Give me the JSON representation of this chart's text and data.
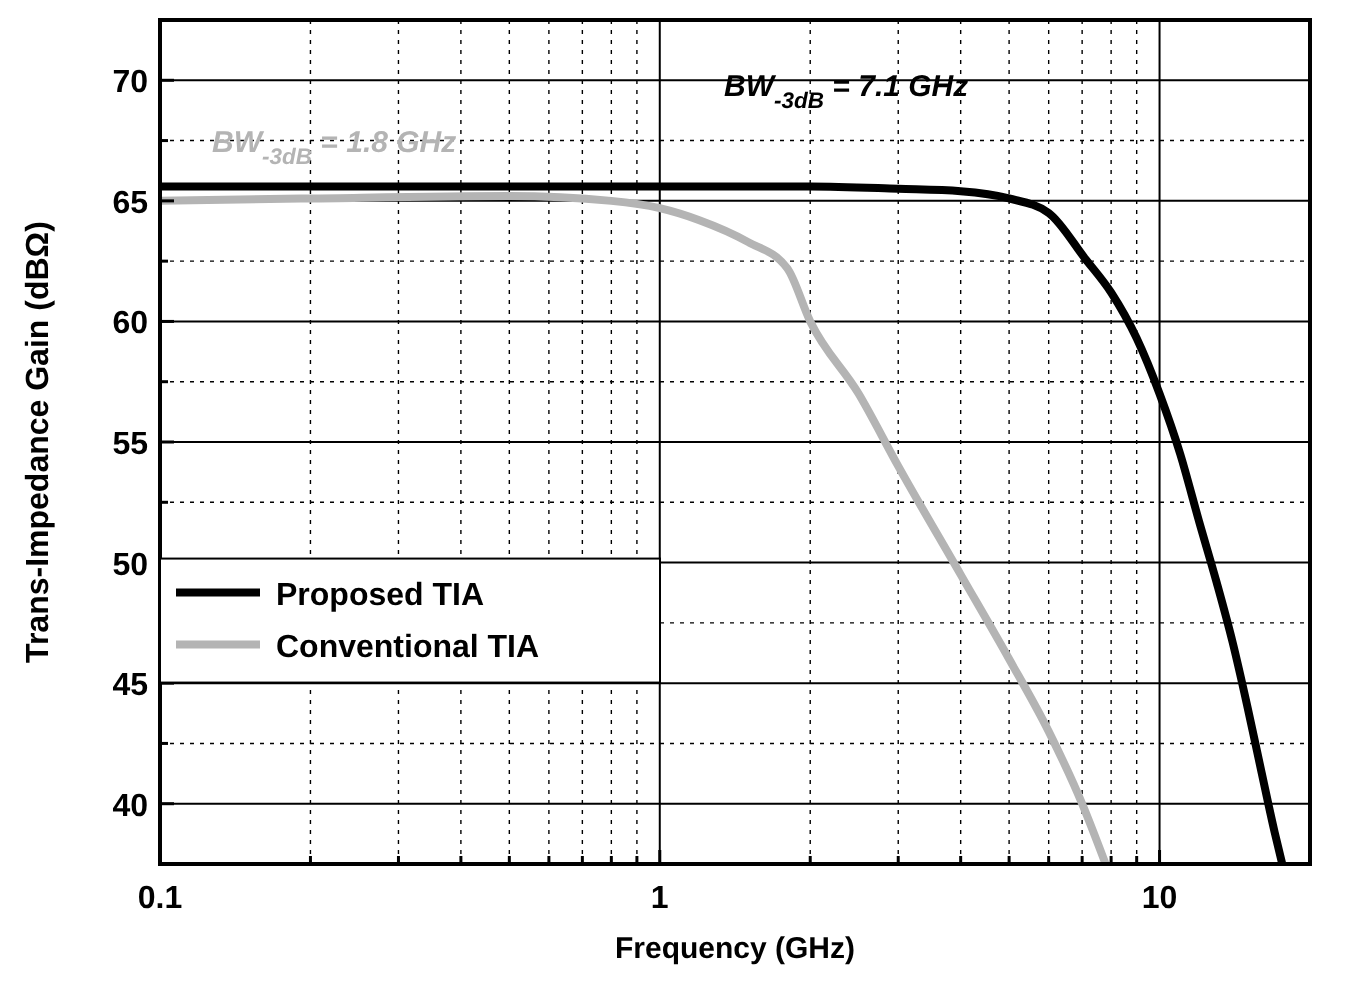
{
  "chart_data": {
    "type": "line",
    "xlabel": "Frequency (GHz)",
    "ylabel": "Trans-Impedance Gain (dBΩ)",
    "log": "x",
    "grid": true,
    "legend": "bottom left",
    "line_style": "solid",
    "xlim": [
      0.1,
      20
    ],
    "ylim": [
      37.5,
      72.5
    ],
    "xticks": [
      0.1,
      {
        "value": 0.2,
        "label": null
      },
      {
        "value": 0.3,
        "label": null
      },
      {
        "value": 0.4,
        "label": null
      },
      {
        "value": 0.5,
        "label": null
      },
      {
        "value": 0.6,
        "label": null
      },
      {
        "value": 0.7,
        "label": null
      },
      {
        "value": 0.8,
        "label": null
      },
      {
        "value": 0.9,
        "label": null
      },
      1,
      {
        "value": 2,
        "label": null
      },
      {
        "value": 3,
        "label": null
      },
      {
        "value": 4,
        "label": null
      },
      {
        "value": 5,
        "label": null
      },
      {
        "value": 6,
        "label": null
      },
      {
        "value": 7,
        "label": null
      },
      {
        "value": 8,
        "label": null
      },
      {
        "value": 9,
        "label": null
      },
      10,
      {
        "value": 20,
        "label": null
      }
    ],
    "yticks": [
      40,
      {
        "value": 42.5,
        "label": null
      },
      45,
      {
        "value": 47.5,
        "label": null
      },
      50,
      {
        "value": 52.5,
        "label": null
      },
      55,
      {
        "value": 57.5,
        "label": null
      },
      60,
      {
        "value": 62.5,
        "label": null
      },
      65,
      {
        "value": 67.5,
        "label": null
      },
      70
    ],
    "series": [
      {
        "name": "Proposed TIA",
        "color": "#000000",
        "x": [
          0.1,
          0.5,
          1,
          2,
          3,
          4,
          5,
          6,
          7.1,
          8,
          9,
          10,
          11,
          12,
          13,
          14,
          15,
          16,
          17,
          17.6
        ],
        "values": [
          65.6,
          65.6,
          65.6,
          65.6,
          65.5,
          65.4,
          65.1,
          64.5,
          62.6,
          61.2,
          59.3,
          57.0,
          54.5,
          51.7,
          49.2,
          46.7,
          44.0,
          41.3,
          38.8,
          37.5
        ]
      },
      {
        "name": "Conventional TIA",
        "color": "#b4b4b4",
        "x": [
          0.1,
          0.2,
          0.5,
          0.8,
          1,
          1.2,
          1.5,
          1.8,
          2,
          2.5,
          3,
          4,
          5,
          6,
          7,
          7.8
        ],
        "values": [
          65.0,
          65.1,
          65.2,
          65.0,
          64.7,
          64.2,
          63.3,
          62.2,
          60.0,
          57.0,
          54.0,
          49.5,
          46.0,
          43.0,
          40.0,
          37.5
        ]
      }
    ],
    "annotations": [
      "BW$_{-3dB}$ = 7.1 GHz",
      "BW$_{-3dB}$ = 1.8 GHz"
    ]
  }
}
